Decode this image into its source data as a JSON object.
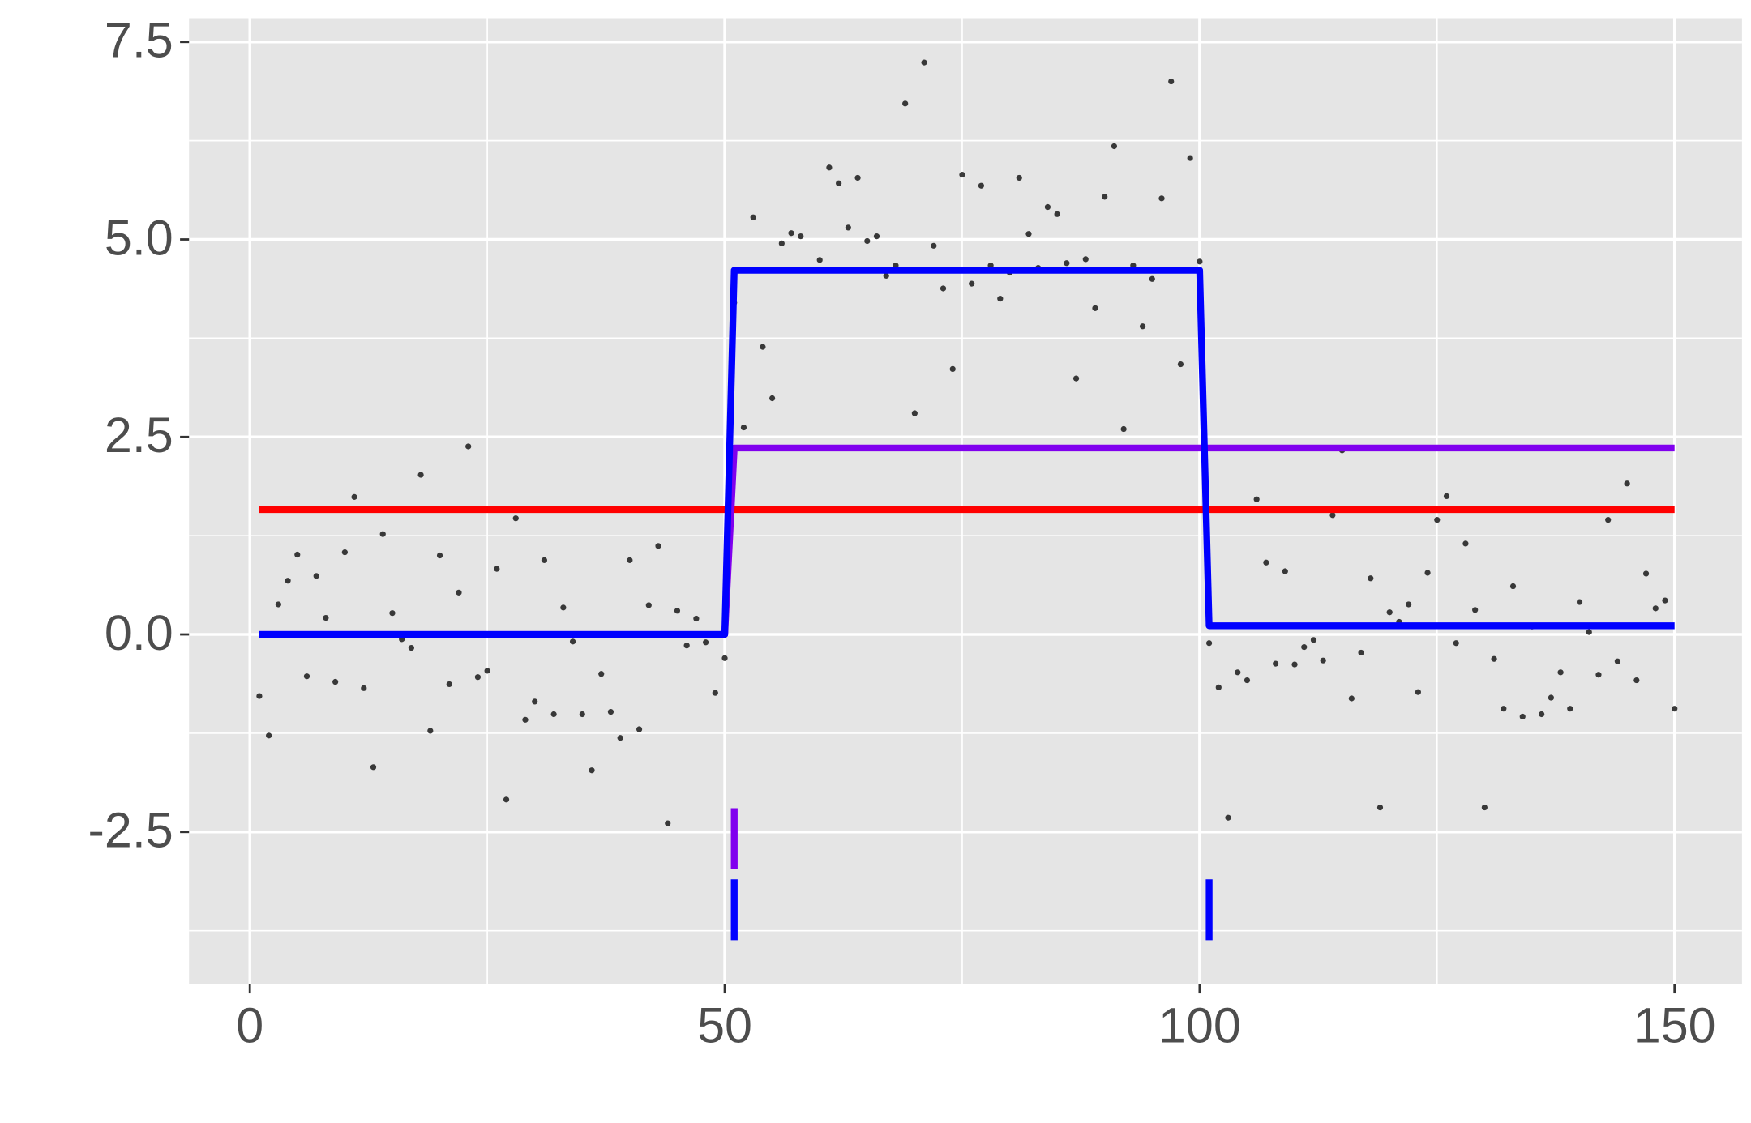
{
  "chart_data": {
    "type": "scatter",
    "x": [
      1,
      2,
      3,
      4,
      5,
      6,
      7,
      8,
      9,
      10,
      11,
      12,
      13,
      14,
      15,
      16,
      17,
      18,
      19,
      20,
      21,
      22,
      23,
      24,
      25,
      26,
      27,
      28,
      29,
      30,
      31,
      32,
      33,
      34,
      35,
      36,
      37,
      38,
      39,
      40,
      41,
      42,
      43,
      44,
      45,
      46,
      47,
      48,
      49,
      50,
      51,
      52,
      53,
      54,
      55,
      56,
      57,
      58,
      59,
      60,
      61,
      62,
      63,
      64,
      65,
      66,
      67,
      68,
      69,
      70,
      71,
      72,
      73,
      74,
      75,
      76,
      77,
      78,
      79,
      80,
      81,
      82,
      83,
      84,
      85,
      86,
      87,
      88,
      89,
      90,
      91,
      92,
      93,
      94,
      95,
      96,
      97,
      98,
      99,
      100,
      101,
      102,
      103,
      104,
      105,
      106,
      107,
      108,
      109,
      110,
      111,
      112,
      113,
      114,
      115,
      116,
      117,
      118,
      119,
      120,
      121,
      122,
      123,
      124,
      125,
      126,
      127,
      128,
      129,
      130,
      131,
      132,
      133,
      134,
      135,
      136,
      137,
      138,
      139,
      140,
      141,
      142,
      143,
      144,
      145,
      146,
      147,
      148,
      149,
      150
    ],
    "values": [
      -0.78,
      -1.28,
      0.38,
      0.68,
      1.01,
      -0.53,
      0.74,
      0.21,
      -0.6,
      1.04,
      1.74,
      -0.68,
      -1.68,
      1.27,
      0.27,
      -0.06,
      -0.17,
      2.02,
      -1.22,
      1.0,
      -0.63,
      0.53,
      2.38,
      -0.54,
      -0.46,
      0.83,
      -2.09,
      1.47,
      -1.08,
      -0.85,
      0.94,
      -1.01,
      0.34,
      -0.09,
      -1.01,
      -1.72,
      -0.5,
      -0.98,
      -1.31,
      0.94,
      -1.2,
      0.37,
      1.12,
      -2.39,
      0.3,
      -0.14,
      0.2,
      -0.1,
      -0.74,
      -0.3,
      4.2,
      2.62,
      5.28,
      3.64,
      2.99,
      4.95,
      5.08,
      5.04,
      4.61,
      4.74,
      5.91,
      5.71,
      5.15,
      5.78,
      4.98,
      5.04,
      4.54,
      4.67,
      6.72,
      2.8,
      7.24,
      4.92,
      4.38,
      3.36,
      5.82,
      4.44,
      5.68,
      4.67,
      4.25,
      4.58,
      5.78,
      5.07,
      4.64,
      5.41,
      5.32,
      4.7,
      3.24,
      4.75,
      4.13,
      5.54,
      6.18,
      2.6,
      4.67,
      3.9,
      4.5,
      5.52,
      7.0,
      3.42,
      6.03,
      4.72,
      -0.11,
      -0.67,
      -2.32,
      -0.48,
      -0.58,
      1.71,
      0.91,
      -0.37,
      0.8,
      -0.38,
      -0.16,
      -0.07,
      -0.33,
      1.51,
      2.33,
      -0.81,
      -0.23,
      0.71,
      -2.19,
      0.28,
      0.16,
      0.38,
      -0.73,
      0.78,
      1.45,
      1.75,
      -0.11,
      1.15,
      0.31,
      -2.19,
      -0.31,
      -0.94,
      0.61,
      -1.04,
      0.1,
      -1.01,
      -0.8,
      -0.48,
      -0.94,
      0.41,
      0.03,
      -0.51,
      1.45,
      -0.34,
      1.91,
      -0.58,
      0.77,
      0.33,
      0.43,
      -0.94
    ],
    "color": "#1a1a1a",
    "lines": [
      {
        "color": "#ff0000",
        "x": [
          1,
          150
        ],
        "values": [
          1.58,
          1.58
        ]
      },
      {
        "color": "#8000ee",
        "x": [
          1,
          50,
          51,
          150
        ],
        "values": [
          0,
          0,
          2.36,
          2.36
        ]
      },
      {
        "color": "#0000ff",
        "x": [
          1,
          50,
          51,
          100,
          101,
          150
        ],
        "values": [
          0,
          0,
          4.61,
          4.61,
          0.11,
          0.11
        ]
      }
    ],
    "changepoints": [
      {
        "color": "#8000ee",
        "x": [
          51
        ],
        "ymin": -2.97,
        "ymax": -2.2
      },
      {
        "color": "#0000ff",
        "x": [
          51,
          101
        ],
        "ymin": -3.87,
        "ymax": -3.1
      }
    ],
    "xlim": [
      -6.4,
      157.1
    ],
    "ylim": [
      -4.43,
      7.8
    ],
    "xticks": [
      0,
      50,
      100,
      150
    ],
    "yticks": [
      7.5,
      {
        "value": 5,
        "label": "5.0"
      },
      2.5,
      {
        "value": 0,
        "label": "0.0"
      },
      -2.5
    ],
    "grid": true,
    "minor_grid": true
  }
}
